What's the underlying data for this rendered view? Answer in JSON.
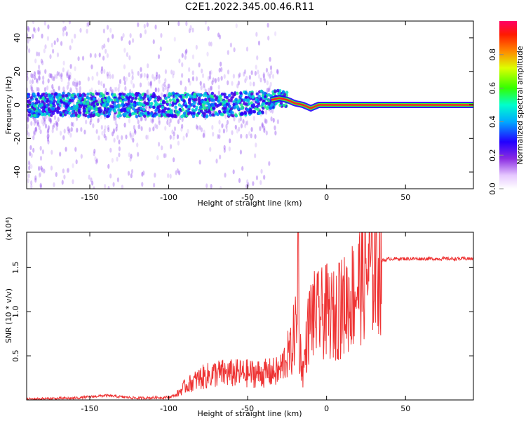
{
  "chart_data": [
    {
      "type": "heatmap",
      "title": "C2E1.2022.345.00.46.R11",
      "xlabel": "Height of straight line (km)",
      "ylabel": "Frequency (Hz)",
      "xlim": [
        -190,
        93
      ],
      "ylim": [
        -50,
        50
      ],
      "x_ticks": [
        -150,
        -100,
        -50,
        0,
        50
      ],
      "x_tick_labels": [
        "-150",
        "-100",
        "-50",
        "0",
        "50"
      ],
      "y_ticks": [
        -40,
        -20,
        0,
        20,
        40
      ],
      "y_tick_labels": [
        "-40",
        "-20",
        "0",
        "20",
        "40"
      ],
      "colorbar": {
        "label": "Normalized spectral amplitude",
        "range": [
          0,
          1
        ],
        "ticks": [
          0.0,
          0.2,
          0.4,
          0.6,
          0.8
        ],
        "tick_labels": [
          "0.0",
          "0.2",
          "0.4",
          "0.6",
          "0.8"
        ]
      },
      "ridge": {
        "description_points_x": [
          -190,
          -150,
          -100,
          -60,
          -40,
          -30,
          -25,
          -20,
          -15,
          -10,
          -5,
          0,
          10,
          93
        ],
        "description_points_y": [
          0,
          0,
          0,
          0,
          2,
          4,
          3,
          1,
          0,
          -2,
          0,
          0,
          0,
          0
        ]
      }
    },
    {
      "type": "line",
      "xlabel": "Height of straight line (km)",
      "ylabel": "SNR (10 * v/v)",
      "y_scale_label": "(x10⁴)",
      "xlim": [
        -190,
        93
      ],
      "ylim": [
        0,
        1.9
      ],
      "x_ticks": [
        -150,
        -100,
        -50,
        0,
        50
      ],
      "x_tick_labels": [
        "-150",
        "-100",
        "-50",
        "0",
        "50"
      ],
      "y_ticks": [
        0.5,
        1.0,
        1.5
      ],
      "y_tick_labels": [
        "0.5",
        "1.0",
        "1.5"
      ],
      "series": [
        {
          "name": "SNR",
          "color": "#ee3333",
          "x": [
            -190,
            -160,
            -140,
            -120,
            -100,
            -95,
            -90,
            -80,
            -70,
            -60,
            -50,
            -40,
            -30,
            -25,
            -22,
            -20,
            -17,
            -15,
            -12,
            -10,
            -5,
            0,
            5,
            10,
            15,
            20,
            25,
            30,
            35,
            40,
            50,
            60,
            70,
            80,
            93
          ],
          "y": [
            0.01,
            0.02,
            0.05,
            0.02,
            0.03,
            0.06,
            0.15,
            0.25,
            0.3,
            0.3,
            0.3,
            0.3,
            0.32,
            0.5,
            0.55,
            0.85,
            0.6,
            0.3,
            0.75,
            0.95,
            0.95,
            1.0,
            0.95,
            1.05,
            1.15,
            1.3,
            1.45,
            1.55,
            1.58,
            1.6,
            1.6,
            1.6,
            1.6,
            1.6,
            1.6
          ],
          "spikes": [
            {
              "x": -18,
              "y": 1.9
            },
            {
              "x": 8,
              "y": 1.55
            }
          ]
        }
      ]
    }
  ],
  "colors": {
    "snr_line": "#ee3333",
    "axis": "#000000",
    "background": "#ffffff"
  }
}
